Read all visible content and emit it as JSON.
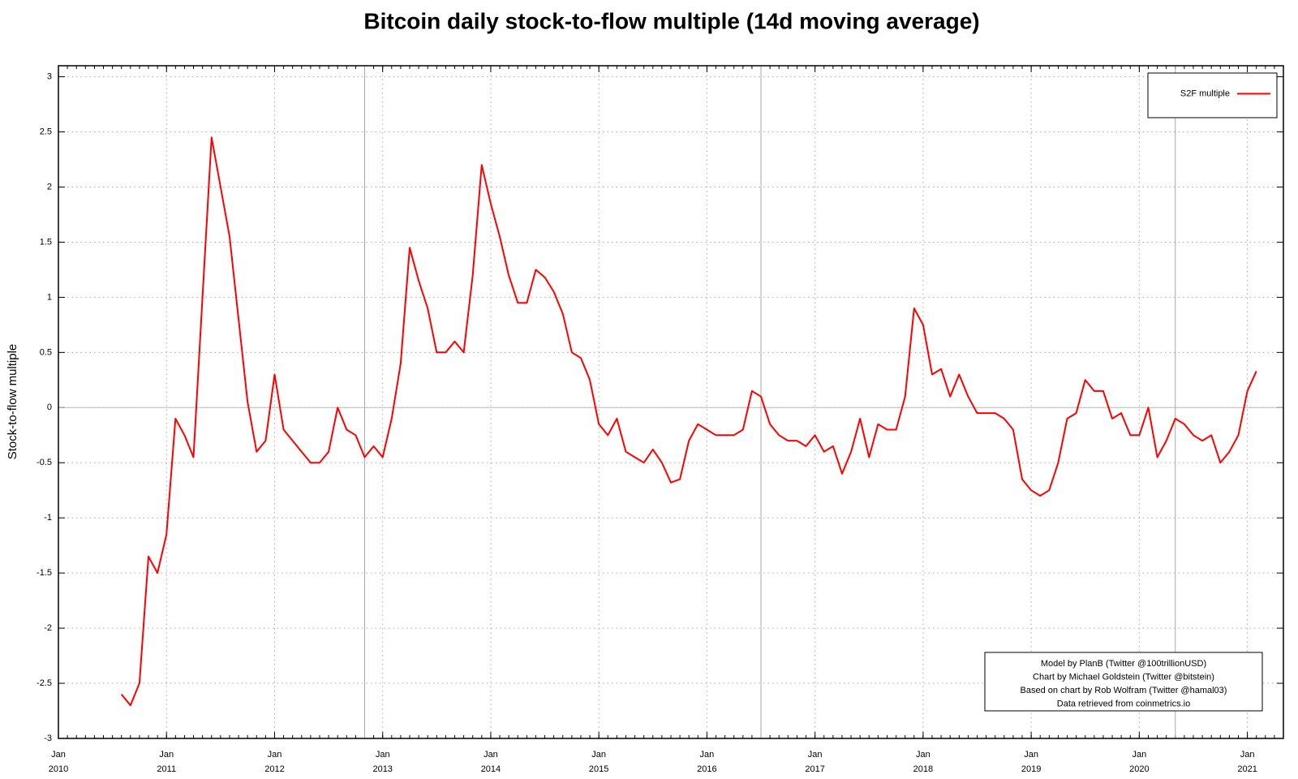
{
  "chart_data": {
    "type": "line",
    "title": "Bitcoin daily stock-to-flow multiple (14d moving average)",
    "ylabel": "Stock-to-flow multiple",
    "x": [
      "2010-08",
      "2010-09",
      "2010-10",
      "2010-11",
      "2010-12",
      "2011-01",
      "2011-02",
      "2011-03",
      "2011-04",
      "2011-05",
      "2011-06",
      "2011-07",
      "2011-08",
      "2011-09",
      "2011-10",
      "2011-11",
      "2011-12",
      "2012-01",
      "2012-02",
      "2012-03",
      "2012-04",
      "2012-05",
      "2012-06",
      "2012-07",
      "2012-08",
      "2012-09",
      "2012-10",
      "2012-11",
      "2012-12",
      "2013-01",
      "2013-02",
      "2013-03",
      "2013-04",
      "2013-05",
      "2013-06",
      "2013-07",
      "2013-08",
      "2013-09",
      "2013-10",
      "2013-11",
      "2013-12",
      "2014-01",
      "2014-02",
      "2014-03",
      "2014-04",
      "2014-05",
      "2014-06",
      "2014-07",
      "2014-08",
      "2014-09",
      "2014-10",
      "2014-11",
      "2014-12",
      "2015-01",
      "2015-02",
      "2015-03",
      "2015-04",
      "2015-05",
      "2015-06",
      "2015-07",
      "2015-08",
      "2015-09",
      "2015-10",
      "2015-11",
      "2015-12",
      "2016-01",
      "2016-02",
      "2016-03",
      "2016-04",
      "2016-05",
      "2016-06",
      "2016-07",
      "2016-08",
      "2016-09",
      "2016-10",
      "2016-11",
      "2016-12",
      "2017-01",
      "2017-02",
      "2017-03",
      "2017-04",
      "2017-05",
      "2017-06",
      "2017-07",
      "2017-08",
      "2017-09",
      "2017-10",
      "2017-11",
      "2017-12",
      "2018-01",
      "2018-02",
      "2018-03",
      "2018-04",
      "2018-05",
      "2018-06",
      "2018-07",
      "2018-08",
      "2018-09",
      "2018-10",
      "2018-11",
      "2018-12",
      "2019-01",
      "2019-02",
      "2019-03",
      "2019-04",
      "2019-05",
      "2019-06",
      "2019-07",
      "2019-08",
      "2019-09",
      "2019-10",
      "2019-11",
      "2019-12",
      "2020-01",
      "2020-02",
      "2020-03",
      "2020-04",
      "2020-05",
      "2020-06",
      "2020-07",
      "2020-08",
      "2020-09",
      "2020-10",
      "2020-11",
      "2020-12",
      "2021-01",
      "2021-02"
    ],
    "series": [
      {
        "name": "S2F multiple",
        "color": "#ff0000",
        "values": [
          -2.6,
          -2.7,
          -2.5,
          -1.35,
          -1.5,
          -1.15,
          -0.1,
          -0.25,
          -0.45,
          1.0,
          2.45,
          2.0,
          1.55,
          0.8,
          0.05,
          -0.4,
          -0.3,
          0.3,
          -0.2,
          -0.3,
          -0.4,
          -0.5,
          -0.5,
          -0.4,
          0.0,
          -0.2,
          -0.25,
          -0.45,
          -0.35,
          -0.45,
          -0.1,
          0.4,
          1.45,
          1.15,
          0.9,
          0.5,
          0.5,
          0.6,
          0.5,
          1.2,
          2.2,
          1.85,
          1.55,
          1.2,
          0.95,
          0.95,
          1.25,
          1.18,
          1.05,
          0.85,
          0.5,
          0.45,
          0.25,
          -0.15,
          -0.25,
          -0.1,
          -0.4,
          -0.45,
          -0.5,
          -0.38,
          -0.5,
          -0.68,
          -0.65,
          -0.3,
          -0.15,
          -0.2,
          -0.25,
          -0.25,
          -0.25,
          -0.2,
          0.15,
          0.1,
          -0.15,
          -0.25,
          -0.3,
          -0.3,
          -0.35,
          -0.25,
          -0.4,
          -0.35,
          -0.6,
          -0.4,
          -0.1,
          -0.45,
          -0.15,
          -0.2,
          -0.2,
          0.1,
          0.9,
          0.75,
          0.3,
          0.35,
          0.1,
          0.3,
          0.1,
          -0.05,
          -0.05,
          -0.05,
          -0.1,
          -0.2,
          -0.65,
          -0.75,
          -0.8,
          -0.75,
          -0.5,
          -0.1,
          -0.05,
          0.25,
          0.15,
          0.15,
          -0.1,
          -0.05,
          -0.25,
          -0.25,
          0.0,
          -0.45,
          -0.3,
          -0.1,
          -0.15,
          -0.25,
          -0.3,
          -0.25,
          -0.5,
          -0.4,
          -0.25,
          0.15,
          0.33
        ]
      }
    ],
    "xlim": [
      "2010-01",
      "2021-05"
    ],
    "xticks": [
      {
        "value": "2010-01",
        "label": [
          "Jan",
          "2010"
        ]
      },
      {
        "value": "2011-01",
        "label": [
          "Jan",
          "2011"
        ]
      },
      {
        "value": "2012-01",
        "label": [
          "Jan",
          "2012"
        ]
      },
      {
        "value": "2013-01",
        "label": [
          "Jan",
          "2013"
        ]
      },
      {
        "value": "2014-01",
        "label": [
          "Jan",
          "2014"
        ]
      },
      {
        "value": "2015-01",
        "label": [
          "Jan",
          "2015"
        ]
      },
      {
        "value": "2016-01",
        "label": [
          "Jan",
          "2016"
        ]
      },
      {
        "value": "2017-01",
        "label": [
          "Jan",
          "2017"
        ]
      },
      {
        "value": "2018-01",
        "label": [
          "Jan",
          "2018"
        ]
      },
      {
        "value": "2019-01",
        "label": [
          "Jan",
          "2019"
        ]
      },
      {
        "value": "2020-01",
        "label": [
          "Jan",
          "2020"
        ]
      },
      {
        "value": "2021-01",
        "label": [
          "Jan",
          "2021"
        ]
      }
    ],
    "ylim": [
      -3,
      3.1
    ],
    "yticks": [
      -3,
      -2.5,
      -2,
      -1.5,
      -1,
      -0.5,
      0,
      0.5,
      1,
      1.5,
      2,
      2.5,
      3
    ],
    "grid": true,
    "halving_lines": [
      "2012-11",
      "2016-07",
      "2020-05"
    ],
    "legend": "top-right",
    "annotations": [
      "Model by PlanB (Twitter @100trillionUSD)",
      "Chart by Michael Goldstein (Twitter @bitstein)",
      "Based on chart by Rob Wolfram (Twitter @hamal03)",
      "Data retrieved from coinmetrics.io"
    ]
  }
}
